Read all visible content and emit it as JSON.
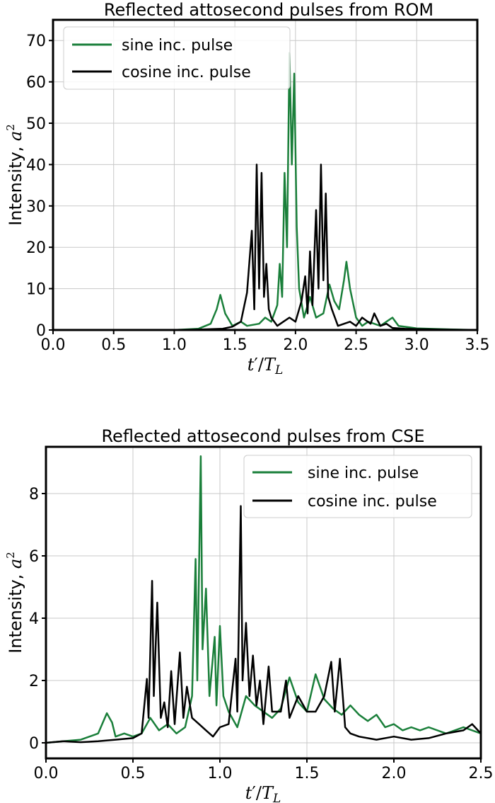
{
  "colors": {
    "sine": "#1a7f3a",
    "cosine": "#000000"
  },
  "chart_data": [
    {
      "type": "line",
      "title": "Reflected attosecond pulses from ROM",
      "xlabel": "t′/T_L",
      "ylabel": "Intensity, a²",
      "xlim": [
        0.0,
        3.5
      ],
      "ylim": [
        0,
        75
      ],
      "xticks": [
        "0.0",
        "0.5",
        "1.0",
        "1.5",
        "2.0",
        "2.5",
        "3.0",
        "3.5"
      ],
      "yticks": [
        "0",
        "10",
        "20",
        "30",
        "40",
        "50",
        "60",
        "70"
      ],
      "grid": true,
      "legend_position": "top-left",
      "series": [
        {
          "name": "sine inc. pulse",
          "color": "#1a7f3a",
          "points": [
            [
              0.0,
              0
            ],
            [
              1.0,
              0
            ],
            [
              1.2,
              0.3
            ],
            [
              1.3,
              1.5
            ],
            [
              1.35,
              5
            ],
            [
              1.38,
              8.5
            ],
            [
              1.42,
              4
            ],
            [
              1.48,
              1
            ],
            [
              1.55,
              2
            ],
            [
              1.6,
              1
            ],
            [
              1.7,
              1.5
            ],
            [
              1.75,
              3
            ],
            [
              1.8,
              2
            ],
            [
              1.85,
              6
            ],
            [
              1.87,
              16
            ],
            [
              1.89,
              8
            ],
            [
              1.91,
              38
            ],
            [
              1.93,
              20
            ],
            [
              1.95,
              67
            ],
            [
              1.97,
              40
            ],
            [
              1.99,
              62
            ],
            [
              2.01,
              25
            ],
            [
              2.03,
              10
            ],
            [
              2.07,
              3
            ],
            [
              2.12,
              8
            ],
            [
              2.17,
              3
            ],
            [
              2.23,
              4
            ],
            [
              2.28,
              11
            ],
            [
              2.32,
              7
            ],
            [
              2.36,
              5
            ],
            [
              2.4,
              12
            ],
            [
              2.42,
              16.5
            ],
            [
              2.45,
              10
            ],
            [
              2.5,
              3
            ],
            [
              2.55,
              1
            ],
            [
              2.6,
              2
            ],
            [
              2.7,
              1
            ],
            [
              2.75,
              2
            ],
            [
              2.8,
              3
            ],
            [
              2.85,
              1
            ],
            [
              2.95,
              0.6
            ],
            [
              3.0,
              0.4
            ],
            [
              3.2,
              0.2
            ],
            [
              3.5,
              0
            ]
          ]
        },
        {
          "name": "cosine inc. pulse",
          "color": "#000000",
          "points": [
            [
              0.0,
              0
            ],
            [
              1.0,
              0
            ],
            [
              1.2,
              0.1
            ],
            [
              1.4,
              0.3
            ],
            [
              1.48,
              0.8
            ],
            [
              1.55,
              2
            ],
            [
              1.6,
              9
            ],
            [
              1.64,
              24
            ],
            [
              1.66,
              5
            ],
            [
              1.68,
              40
            ],
            [
              1.7,
              10
            ],
            [
              1.72,
              38
            ],
            [
              1.74,
              8
            ],
            [
              1.76,
              16
            ],
            [
              1.78,
              5
            ],
            [
              1.8,
              3
            ],
            [
              1.85,
              1
            ],
            [
              1.9,
              2
            ],
            [
              1.95,
              3
            ],
            [
              2.0,
              2
            ],
            [
              2.05,
              7
            ],
            [
              2.08,
              13
            ],
            [
              2.1,
              4
            ],
            [
              2.12,
              19
            ],
            [
              2.14,
              6
            ],
            [
              2.17,
              29
            ],
            [
              2.19,
              10
            ],
            [
              2.21,
              40
            ],
            [
              2.23,
              12
            ],
            [
              2.25,
              33
            ],
            [
              2.27,
              8
            ],
            [
              2.3,
              5
            ],
            [
              2.35,
              1
            ],
            [
              2.45,
              2
            ],
            [
              2.5,
              1
            ],
            [
              2.55,
              3
            ],
            [
              2.62,
              1.5
            ],
            [
              2.65,
              4
            ],
            [
              2.7,
              1
            ],
            [
              2.75,
              1.5
            ],
            [
              2.8,
              0.5
            ],
            [
              2.9,
              0.3
            ],
            [
              3.0,
              0.2
            ],
            [
              3.2,
              0.1
            ],
            [
              3.5,
              0
            ]
          ]
        }
      ]
    },
    {
      "type": "line",
      "title": "Reflected attosecond pulses from CSE",
      "xlabel": "t′/T_L",
      "ylabel": "Intensity, a²",
      "xlim": [
        0.0,
        2.5
      ],
      "ylim": [
        -0.5,
        9.5
      ],
      "xticks": [
        "0.0",
        "0.5",
        "1.0",
        "1.5",
        "2.0",
        "2.5"
      ],
      "yticks": [
        "0",
        "2",
        "4",
        "6",
        "8"
      ],
      "grid": true,
      "legend_position": "top-right",
      "series": [
        {
          "name": "sine inc. pulse",
          "color": "#1a7f3a",
          "points": [
            [
              0.0,
              0
            ],
            [
              0.1,
              0.05
            ],
            [
              0.2,
              0.1
            ],
            [
              0.25,
              0.2
            ],
            [
              0.3,
              0.3
            ],
            [
              0.35,
              0.95
            ],
            [
              0.38,
              0.65
            ],
            [
              0.4,
              0.2
            ],
            [
              0.45,
              0.3
            ],
            [
              0.5,
              0.2
            ],
            [
              0.55,
              0.3
            ],
            [
              0.6,
              0.8
            ],
            [
              0.65,
              0.4
            ],
            [
              0.7,
              0.6
            ],
            [
              0.75,
              0.3
            ],
            [
              0.8,
              0.5
            ],
            [
              0.84,
              1.5
            ],
            [
              0.86,
              5.9
            ],
            [
              0.87,
              2
            ],
            [
              0.89,
              9.2
            ],
            [
              0.9,
              3
            ],
            [
              0.92,
              4.95
            ],
            [
              0.94,
              1.5
            ],
            [
              0.97,
              3.4
            ],
            [
              0.98,
              1.2
            ],
            [
              1.0,
              3.75
            ],
            [
              1.02,
              1.5
            ],
            [
              1.05,
              1
            ],
            [
              1.1,
              0.5
            ],
            [
              1.15,
              1.5
            ],
            [
              1.2,
              1.2
            ],
            [
              1.25,
              1
            ],
            [
              1.3,
              0.8
            ],
            [
              1.35,
              1.1
            ],
            [
              1.4,
              2.1
            ],
            [
              1.45,
              1.3
            ],
            [
              1.5,
              1
            ],
            [
              1.55,
              2.2
            ],
            [
              1.6,
              1.4
            ],
            [
              1.65,
              1.1
            ],
            [
              1.7,
              0.9
            ],
            [
              1.75,
              1.2
            ],
            [
              1.8,
              0.9
            ],
            [
              1.85,
              0.7
            ],
            [
              1.9,
              0.9
            ],
            [
              1.95,
              0.5
            ],
            [
              2.0,
              0.6
            ],
            [
              2.05,
              0.4
            ],
            [
              2.1,
              0.5
            ],
            [
              2.15,
              0.4
            ],
            [
              2.2,
              0.5
            ],
            [
              2.3,
              0.3
            ],
            [
              2.4,
              0.5
            ],
            [
              2.5,
              0.3
            ]
          ]
        },
        {
          "name": "cosine inc. pulse",
          "color": "#000000",
          "points": [
            [
              0.0,
              0
            ],
            [
              0.1,
              0.05
            ],
            [
              0.2,
              0.02
            ],
            [
              0.3,
              0.05
            ],
            [
              0.4,
              0.1
            ],
            [
              0.5,
              0.15
            ],
            [
              0.55,
              0.3
            ],
            [
              0.58,
              2.05
            ],
            [
              0.59,
              0.8
            ],
            [
              0.61,
              5.2
            ],
            [
              0.62,
              1.5
            ],
            [
              0.64,
              4.5
            ],
            [
              0.66,
              0.8
            ],
            [
              0.68,
              1.3
            ],
            [
              0.7,
              0.5
            ],
            [
              0.72,
              2.3
            ],
            [
              0.74,
              0.6
            ],
            [
              0.77,
              2.9
            ],
            [
              0.79,
              0.8
            ],
            [
              0.81,
              1.8
            ],
            [
              0.84,
              0.8
            ],
            [
              0.88,
              0.6
            ],
            [
              0.92,
              0.4
            ],
            [
              0.96,
              0.2
            ],
            [
              1.0,
              0.5
            ],
            [
              1.05,
              0.6
            ],
            [
              1.09,
              2.7
            ],
            [
              1.1,
              1
            ],
            [
              1.12,
              7.6
            ],
            [
              1.13,
              2
            ],
            [
              1.15,
              3.85
            ],
            [
              1.17,
              1.5
            ],
            [
              1.19,
              2.8
            ],
            [
              1.21,
              1.2
            ],
            [
              1.23,
              2
            ],
            [
              1.25,
              0.6
            ],
            [
              1.28,
              2.45
            ],
            [
              1.3,
              1
            ],
            [
              1.35,
              1
            ],
            [
              1.38,
              2
            ],
            [
              1.4,
              0.8
            ],
            [
              1.45,
              1.5
            ],
            [
              1.5,
              1
            ],
            [
              1.55,
              1
            ],
            [
              1.6,
              1.5
            ],
            [
              1.64,
              2.6
            ],
            [
              1.66,
              1
            ],
            [
              1.69,
              2.7
            ],
            [
              1.72,
              0.5
            ],
            [
              1.75,
              0.3
            ],
            [
              1.8,
              0.2
            ],
            [
              1.9,
              0.1
            ],
            [
              2.0,
              0.2
            ],
            [
              2.1,
              0.1
            ],
            [
              2.2,
              0.15
            ],
            [
              2.3,
              0.3
            ],
            [
              2.4,
              0.4
            ],
            [
              2.45,
              0.6
            ],
            [
              2.5,
              0.3
            ]
          ]
        }
      ]
    }
  ]
}
